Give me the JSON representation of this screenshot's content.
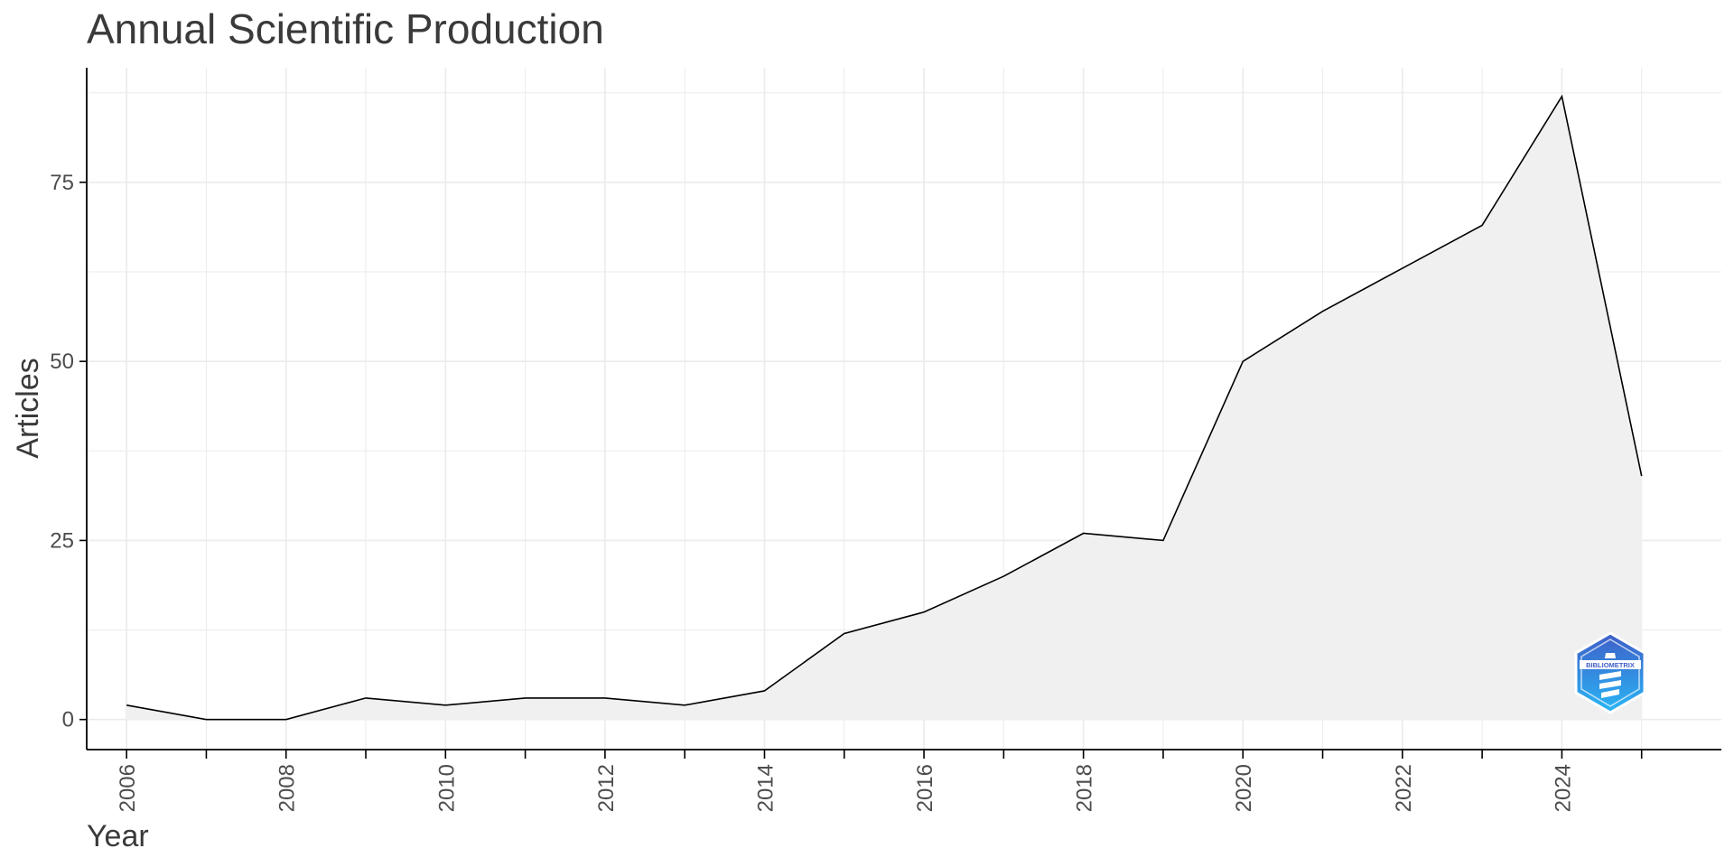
{
  "chart_data": {
    "type": "area",
    "title": "Annual Scientific Production",
    "xlabel": "Year",
    "ylabel": "Articles",
    "x": [
      2006,
      2007,
      2008,
      2009,
      2010,
      2011,
      2012,
      2013,
      2014,
      2015,
      2016,
      2017,
      2018,
      2019,
      2020,
      2021,
      2022,
      2023,
      2024,
      2025
    ],
    "series": [
      {
        "values": [
          2,
          0,
          0,
          3,
          2,
          3,
          3,
          2,
          4,
          12,
          15,
          20,
          26,
          25,
          50,
          57,
          63,
          69,
          87,
          34
        ]
      }
    ],
    "x_ticks": [
      "2006",
      "2008",
      "2010",
      "2012",
      "2014",
      "2016",
      "2018",
      "2020",
      "2022",
      "2024"
    ],
    "y_ticks": [
      "0",
      "25",
      "50",
      "75"
    ],
    "xlim": [
      2005.5,
      2026
    ],
    "ylim": [
      -4.2,
      91
    ],
    "grid": true,
    "colors": {
      "fill": "#f0f0f0",
      "line": "#000000",
      "grid": "#ebebeb",
      "axis": "#000000"
    }
  },
  "watermark": {
    "name": "bibliometrix-logo",
    "text": "BIBLIOMETRIX"
  }
}
